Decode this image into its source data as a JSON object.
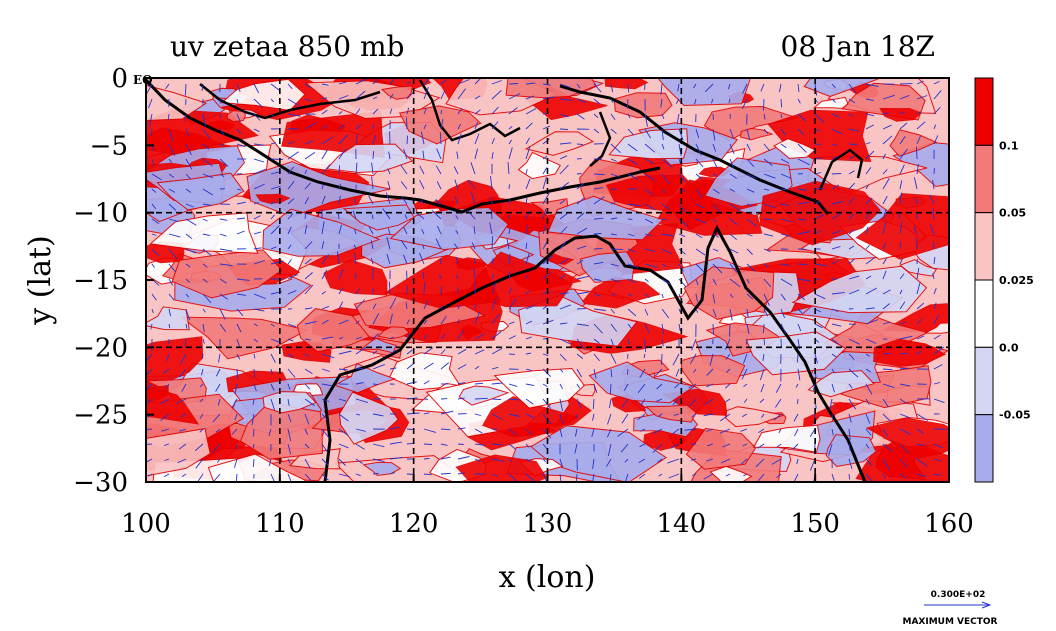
{
  "chart_data": {
    "type": "heatmap",
    "title": "uv zetaa 850 mb",
    "date_label": "08 Jan 18Z",
    "xlabel": "x (lon)",
    "ylabel": "y (lat)",
    "xlim": [
      100,
      160
    ],
    "ylim": [
      -30,
      0
    ],
    "x_ticks": [
      100,
      110,
      120,
      130,
      140,
      150,
      160
    ],
    "y_ticks": [
      {
        "value": 0,
        "label": "0"
      },
      {
        "value": -5,
        "label": "−5"
      },
      {
        "value": -10,
        "label": "−10"
      },
      {
        "value": -15,
        "label": "−15"
      },
      {
        "value": -20,
        "label": "−20"
      },
      {
        "value": -25,
        "label": "−25"
      },
      {
        "value": -30,
        "label": "−30"
      }
    ],
    "equator_label": "EQ",
    "grid": true,
    "colorbar": {
      "levels": [
        "0.1",
        "0.05",
        "0.025",
        "0.0",
        "-0.05"
      ],
      "colors": [
        "#ee0000",
        "#f27a7a",
        "#f9c4c4",
        "#ffffff",
        "#d4d6f4",
        "#a8acec"
      ]
    },
    "vector_reference": {
      "magnitude": "0.300E+02",
      "label": "MAXIMUM VECTOR"
    },
    "colors": {
      "contour": "#e00000",
      "vector": "#2233cc",
      "coast": "#000000"
    }
  }
}
